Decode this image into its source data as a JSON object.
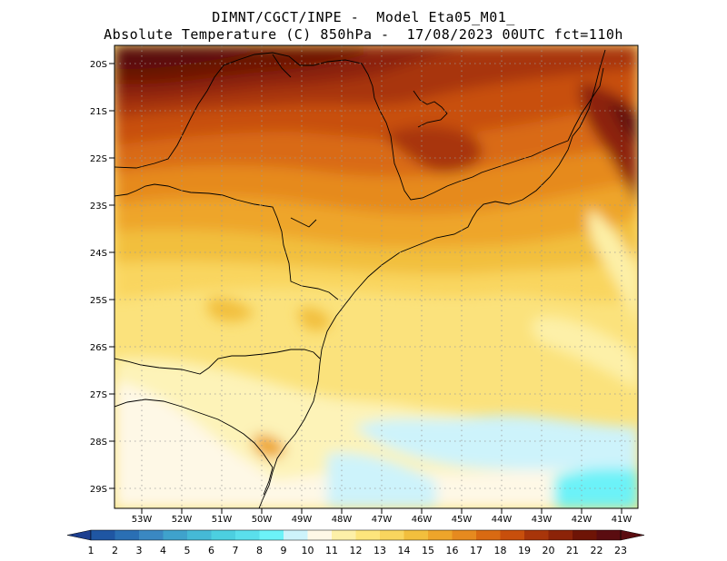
{
  "title": {
    "line1": "DIMNT/CGCT/INPE -  Model Eta05_M01_",
    "line2": "Absolute Temperature (C) 850hPa -  17/08/2023 00UTC fct=110h"
  },
  "lat_labels": [
    "20S",
    "21S",
    "22S",
    "23S",
    "24S",
    "25S",
    "26S",
    "27S",
    "28S",
    "29S"
  ],
  "lon_labels": [
    "53W",
    "52W",
    "51W",
    "50W",
    "49W",
    "48W",
    "47W",
    "46W",
    "45W",
    "44W",
    "43W",
    "42W",
    "41W"
  ],
  "colorbar": {
    "labels": [
      "1",
      "2",
      "3",
      "4",
      "5",
      "6",
      "7",
      "8",
      "9",
      "10",
      "11",
      "12",
      "13",
      "14",
      "15",
      "16",
      "17",
      "18",
      "19",
      "20",
      "21",
      "22",
      "23"
    ],
    "colors": [
      "#1d3f8f",
      "#1f56a3",
      "#2a6fb4",
      "#3a88c2",
      "#3fa2cc",
      "#45b9d6",
      "#4ccfe0",
      "#5adfec",
      "#6cf2f8",
      "#cdf3fb",
      "#fef8e6",
      "#fdf0a8",
      "#fde57c",
      "#f9d55e",
      "#f2bf3d",
      "#eea52a",
      "#e68a1f",
      "#d96a12",
      "#c84f0c",
      "#a8350a",
      "#8c2308",
      "#6e1406",
      "#5a0c10"
    ]
  }
}
